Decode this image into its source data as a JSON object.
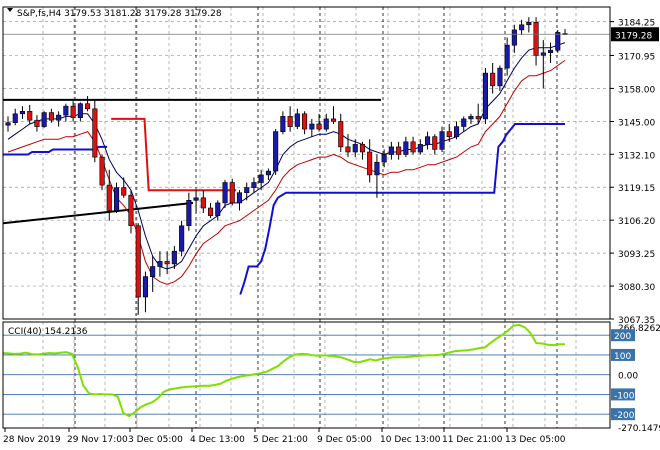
{
  "header": {
    "text": "S&P,fs,H4  3179.53 3181.28 3179.28 3179.28"
  },
  "price_axis": {
    "ticks": [
      "3184.25",
      "3170.95",
      "3158.00",
      "3145.00",
      "3132.10",
      "3119.15",
      "3106.20",
      "3093.25",
      "3080.30",
      "3067.35"
    ],
    "current_price": "3179.28"
  },
  "cci_panel": {
    "label": "CCI(40) 154.2136",
    "axis_top": "266.8262",
    "axis_bottom": "-270.1479",
    "levels": [
      "200",
      "100",
      "0.00",
      "-100",
      "-200"
    ]
  },
  "time_axis": {
    "labels": [
      "28 Nov 2019",
      "29 Nov 17:00",
      "3 Dec 05:00",
      "4 Dec 13:00",
      "5 Dec 21:00",
      "9 Dec 05:00",
      "10 Dec 13:00",
      "11 Dec 21:00",
      "13 Dec 05:00"
    ]
  },
  "colors": {
    "bull": "#1a1aa8",
    "bear": "#dd1111",
    "border": "#000000",
    "grid": "#9a9a9a",
    "cci_line": "#7ee000",
    "level_bg": "#3973ac",
    "current_bg": "#000000"
  },
  "chart_data": {
    "type": "candlestick",
    "x_start": "28 Nov 2019",
    "timeframe": "H4",
    "ylim": [
      3067.35,
      3190
    ],
    "candles": [
      {
        "o": 3143.5,
        "h": 3147.0,
        "l": 3141.0,
        "c": 3144.5
      },
      {
        "o": 3144.5,
        "h": 3150.0,
        "l": 3143.5,
        "c": 3148.0
      },
      {
        "o": 3148.0,
        "h": 3151.0,
        "l": 3146.0,
        "c": 3149.0
      },
      {
        "o": 3149.0,
        "h": 3151.5,
        "l": 3144.0,
        "c": 3145.5
      },
      {
        "o": 3145.5,
        "h": 3147.5,
        "l": 3141.0,
        "c": 3143.0
      },
      {
        "o": 3143.0,
        "h": 3149.0,
        "l": 3142.5,
        "c": 3148.5
      },
      {
        "o": 3148.5,
        "h": 3150.0,
        "l": 3144.5,
        "c": 3145.5
      },
      {
        "o": 3145.5,
        "h": 3149.0,
        "l": 3143.0,
        "c": 3147.5
      },
      {
        "o": 3147.5,
        "h": 3152.0,
        "l": 3145.0,
        "c": 3151.0
      },
      {
        "o": 3151.0,
        "h": 3153.0,
        "l": 3145.0,
        "c": 3146.5
      },
      {
        "o": 3146.5,
        "h": 3152.5,
        "l": 3145.0,
        "c": 3152.0
      },
      {
        "o": 3152.0,
        "h": 3155.0,
        "l": 3149.0,
        "c": 3150.0
      },
      {
        "o": 3150.0,
        "h": 3153.5,
        "l": 3129.0,
        "c": 3131.0
      },
      {
        "o": 3131.0,
        "h": 3132.0,
        "l": 3118.0,
        "c": 3120.0
      },
      {
        "o": 3120.0,
        "h": 3126.0,
        "l": 3106.0,
        "c": 3110.0
      },
      {
        "o": 3110.0,
        "h": 3121.0,
        "l": 3109.0,
        "c": 3119.0
      },
      {
        "o": 3119.0,
        "h": 3123.0,
        "l": 3115.0,
        "c": 3116.0
      },
      {
        "o": 3116.0,
        "h": 3118.0,
        "l": 3101.0,
        "c": 3104.0
      },
      {
        "o": 3104.0,
        "h": 3105.0,
        "l": 3069.0,
        "c": 3076.0
      },
      {
        "o": 3076.0,
        "h": 3086.0,
        "l": 3070.0,
        "c": 3084.0
      },
      {
        "o": 3084.0,
        "h": 3092.0,
        "l": 3078.0,
        "c": 3088.0
      },
      {
        "o": 3088.0,
        "h": 3094.0,
        "l": 3084.0,
        "c": 3090.0
      },
      {
        "o": 3090.0,
        "h": 3094.0,
        "l": 3085.0,
        "c": 3089.0
      },
      {
        "o": 3089.0,
        "h": 3096.0,
        "l": 3087.0,
        "c": 3094.0
      },
      {
        "o": 3094.0,
        "h": 3106.0,
        "l": 3092.0,
        "c": 3104.0
      },
      {
        "o": 3104.0,
        "h": 3117.0,
        "l": 3102.0,
        "c": 3114.0
      },
      {
        "o": 3114.0,
        "h": 3118.0,
        "l": 3109.0,
        "c": 3115.0
      },
      {
        "o": 3115.0,
        "h": 3118.0,
        "l": 3109.0,
        "c": 3111.0
      },
      {
        "o": 3111.0,
        "h": 3113.0,
        "l": 3107.0,
        "c": 3108.0
      },
      {
        "o": 3108.0,
        "h": 3114.0,
        "l": 3106.0,
        "c": 3113.0
      },
      {
        "o": 3113.0,
        "h": 3122.0,
        "l": 3111.0,
        "c": 3121.0
      },
      {
        "o": 3121.0,
        "h": 3122.5,
        "l": 3112.0,
        "c": 3113.0
      },
      {
        "o": 3113.0,
        "h": 3118.0,
        "l": 3110.0,
        "c": 3117.0
      },
      {
        "o": 3117.0,
        "h": 3121.0,
        "l": 3114.0,
        "c": 3119.0
      },
      {
        "o": 3119.0,
        "h": 3123.0,
        "l": 3117.0,
        "c": 3121.0
      },
      {
        "o": 3121.0,
        "h": 3126.0,
        "l": 3118.0,
        "c": 3124.0
      },
      {
        "o": 3124.0,
        "h": 3126.5,
        "l": 3122.0,
        "c": 3125.5
      },
      {
        "o": 3125.5,
        "h": 3142.0,
        "l": 3124.0,
        "c": 3141.0
      },
      {
        "o": 3141.0,
        "h": 3149.0,
        "l": 3140.0,
        "c": 3147.0
      },
      {
        "o": 3147.0,
        "h": 3151.0,
        "l": 3141.0,
        "c": 3143.0
      },
      {
        "o": 3143.0,
        "h": 3150.0,
        "l": 3142.0,
        "c": 3148.0
      },
      {
        "o": 3148.0,
        "h": 3149.0,
        "l": 3140.0,
        "c": 3142.0
      },
      {
        "o": 3142.0,
        "h": 3146.0,
        "l": 3139.0,
        "c": 3144.0
      },
      {
        "o": 3144.0,
        "h": 3148.0,
        "l": 3141.0,
        "c": 3142.0
      },
      {
        "o": 3142.0,
        "h": 3148.0,
        "l": 3141.0,
        "c": 3146.0
      },
      {
        "o": 3146.0,
        "h": 3151.0,
        "l": 3144.0,
        "c": 3145.0
      },
      {
        "o": 3145.0,
        "h": 3148.0,
        "l": 3133.0,
        "c": 3135.0
      },
      {
        "o": 3135.0,
        "h": 3140.0,
        "l": 3131.0,
        "c": 3133.0
      },
      {
        "o": 3133.0,
        "h": 3138.0,
        "l": 3131.0,
        "c": 3136.0
      },
      {
        "o": 3136.0,
        "h": 3137.0,
        "l": 3130.0,
        "c": 3133.0
      },
      {
        "o": 3133.0,
        "h": 3138.0,
        "l": 3121.0,
        "c": 3124.0
      },
      {
        "o": 3124.0,
        "h": 3132.0,
        "l": 3115.0,
        "c": 3129.0
      },
      {
        "o": 3129.0,
        "h": 3134.0,
        "l": 3127.0,
        "c": 3132.0
      },
      {
        "o": 3132.0,
        "h": 3137.0,
        "l": 3130.0,
        "c": 3135.0
      },
      {
        "o": 3135.0,
        "h": 3137.0,
        "l": 3130.0,
        "c": 3132.0
      },
      {
        "o": 3132.0,
        "h": 3139.0,
        "l": 3131.0,
        "c": 3137.0
      },
      {
        "o": 3137.0,
        "h": 3139.0,
        "l": 3132.0,
        "c": 3133.0
      },
      {
        "o": 3133.0,
        "h": 3138.0,
        "l": 3132.0,
        "c": 3136.0
      },
      {
        "o": 3136.0,
        "h": 3141.0,
        "l": 3134.0,
        "c": 3139.0
      },
      {
        "o": 3139.0,
        "h": 3140.0,
        "l": 3132.0,
        "c": 3134.0
      },
      {
        "o": 3134.0,
        "h": 3143.0,
        "l": 3133.0,
        "c": 3141.0
      },
      {
        "o": 3141.0,
        "h": 3144.0,
        "l": 3137.0,
        "c": 3139.0
      },
      {
        "o": 3139.0,
        "h": 3145.0,
        "l": 3138.0,
        "c": 3143.0
      },
      {
        "o": 3143.0,
        "h": 3147.0,
        "l": 3141.0,
        "c": 3146.0
      },
      {
        "o": 3146.0,
        "h": 3148.0,
        "l": 3144.0,
        "c": 3147.0
      },
      {
        "o": 3147.0,
        "h": 3152.0,
        "l": 3144.0,
        "c": 3146.0
      },
      {
        "o": 3146.0,
        "h": 3166.0,
        "l": 3144.0,
        "c": 3164.0
      },
      {
        "o": 3164.0,
        "h": 3168.0,
        "l": 3156.0,
        "c": 3159.0
      },
      {
        "o": 3159.0,
        "h": 3167.0,
        "l": 3157.0,
        "c": 3166.0
      },
      {
        "o": 3166.0,
        "h": 3178.0,
        "l": 3163.0,
        "c": 3175.0
      },
      {
        "o": 3175.0,
        "h": 3183.0,
        "l": 3172.0,
        "c": 3181.0
      },
      {
        "o": 3181.0,
        "h": 3185.0,
        "l": 3179.0,
        "c": 3183.0
      },
      {
        "o": 3183.0,
        "h": 3186.0,
        "l": 3180.0,
        "c": 3184.0
      },
      {
        "o": 3184.0,
        "h": 3186.0,
        "l": 3167.0,
        "c": 3171.0
      },
      {
        "o": 3171.0,
        "h": 3177.0,
        "l": 3158.0,
        "c": 3172.0
      },
      {
        "o": 3172.0,
        "h": 3176.0,
        "l": 3168.0,
        "c": 3173.0
      },
      {
        "o": 3173.0,
        "h": 3181.0,
        "l": 3172.0,
        "c": 3180.0
      },
      {
        "o": 3179.53,
        "h": 3181.28,
        "l": 3179.28,
        "c": 3179.28
      }
    ],
    "mid_line": [
      3138,
      3140,
      3142,
      3144,
      3145,
      3146,
      3146,
      3146,
      3147,
      3147,
      3148,
      3148,
      3144,
      3138,
      3130,
      3125,
      3122,
      3118,
      3110,
      3100,
      3092,
      3088,
      3087,
      3088,
      3090,
      3095,
      3100,
      3104,
      3106,
      3108,
      3112,
      3113,
      3113,
      3115,
      3117,
      3119,
      3121,
      3126,
      3132,
      3135,
      3137,
      3138,
      3139,
      3140,
      3140,
      3141,
      3140,
      3138,
      3137,
      3136,
      3134,
      3133,
      3132,
      3133,
      3133,
      3134,
      3134,
      3135,
      3136,
      3136,
      3137,
      3138,
      3139,
      3141,
      3143,
      3144,
      3150,
      3153,
      3156,
      3161,
      3166,
      3170,
      3173,
      3174,
      3174,
      3174,
      3175,
      3176
    ],
    "lower_line": [
      3133,
      3134,
      3135,
      3136,
      3137,
      3138,
      3138,
      3138,
      3139,
      3139,
      3140,
      3141,
      3137,
      3130,
      3122,
      3115,
      3112,
      3108,
      3100,
      3090,
      3084,
      3082,
      3081,
      3082,
      3084,
      3088,
      3093,
      3097,
      3099,
      3101,
      3104,
      3105,
      3106,
      3108,
      3110,
      3112,
      3114,
      3118,
      3123,
      3126,
      3128,
      3129,
      3130,
      3131,
      3131,
      3132,
      3131,
      3129,
      3128,
      3127,
      3126,
      3125,
      3124,
      3125,
      3125,
      3126,
      3126,
      3127,
      3128,
      3128,
      3129,
      3130,
      3131,
      3133,
      3135,
      3136,
      3141,
      3144,
      3147,
      3152,
      3157,
      3161,
      3163,
      3163,
      3164,
      3165,
      3167,
      3169
    ],
    "envelope_lower": [
      [
        0,
        3132
      ],
      [
        1,
        3132
      ],
      [
        2,
        3132
      ],
      [
        3,
        3132
      ],
      [
        4,
        3132
      ],
      [
        5,
        3132
      ],
      [
        6,
        3132
      ],
      [
        7,
        3133
      ],
      [
        8,
        3133
      ],
      [
        9,
        3133
      ],
      [
        10,
        3133
      ],
      [
        11,
        3133
      ],
      [
        12,
        3134
      ],
      [
        13,
        3134
      ],
      [
        14,
        3134
      ],
      [
        15,
        3134
      ],
      [
        16,
        3134
      ],
      [
        17,
        3134
      ],
      [
        18,
        3134
      ],
      [
        19,
        3134
      ],
      [
        20,
        3134
      ],
      [
        21,
        3134
      ],
      [
        22,
        3134
      ],
      [
        23,
        3135
      ],
      [
        24,
        3135
      ],
      [
        25,
        3135
      ],
      null,
      [
        57,
        3077
      ],
      [
        58,
        3082
      ],
      [
        59,
        3088
      ],
      [
        60,
        3088
      ],
      [
        61,
        3088
      ],
      [
        62,
        3090
      ],
      [
        63,
        3095
      ],
      [
        64,
        3103
      ],
      [
        65,
        3112
      ],
      [
        66,
        3115
      ],
      [
        67,
        3116
      ],
      [
        68,
        3117
      ],
      [
        69,
        3117
      ],
      [
        70,
        3117
      ],
      [
        71,
        3117
      ],
      [
        72,
        3117
      ],
      [
        73,
        3117
      ],
      [
        74,
        3117
      ],
      [
        75,
        3117
      ],
      [
        76,
        3117
      ],
      [
        77,
        3117
      ],
      [
        78,
        3117
      ],
      [
        79,
        3117
      ],
      [
        80,
        3117
      ],
      [
        81,
        3117
      ],
      [
        82,
        3117
      ],
      [
        83,
        3117
      ],
      [
        84,
        3117
      ],
      [
        85,
        3117
      ],
      [
        86,
        3117
      ],
      [
        87,
        3117
      ],
      [
        88,
        3117
      ],
      [
        89,
        3117
      ],
      [
        90,
        3117
      ],
      [
        91,
        3117
      ],
      [
        92,
        3117
      ],
      [
        93,
        3117
      ],
      [
        94,
        3117
      ],
      [
        95,
        3117
      ],
      [
        96,
        3117
      ],
      [
        97,
        3117
      ],
      [
        98,
        3117
      ],
      [
        99,
        3117
      ],
      [
        100,
        3117
      ],
      [
        101,
        3117
      ],
      [
        102,
        3117
      ],
      [
        103,
        3117
      ],
      [
        104,
        3117
      ],
      [
        105,
        3117
      ],
      [
        106,
        3117
      ],
      [
        107,
        3117
      ],
      [
        108,
        3117
      ],
      [
        109,
        3117
      ],
      [
        110,
        3117
      ],
      [
        111,
        3117
      ],
      [
        112,
        3117
      ],
      [
        113,
        3117
      ],
      [
        114,
        3117
      ],
      [
        115,
        3117
      ],
      [
        116,
        3117
      ],
      [
        117,
        3117
      ],
      [
        118,
        3117
      ],
      [
        119,
        3135
      ],
      [
        120,
        3137
      ],
      [
        121,
        3140
      ],
      [
        122,
        3142
      ],
      [
        123,
        3144
      ],
      [
        124,
        3144
      ],
      [
        125,
        3144
      ],
      [
        126,
        3144
      ],
      [
        127,
        3144
      ],
      [
        128,
        3144
      ],
      [
        129,
        3144
      ],
      [
        130,
        3144
      ],
      [
        131,
        3144
      ],
      [
        132,
        3144
      ],
      [
        133,
        3144
      ],
      [
        134,
        3144
      ],
      [
        135,
        3144
      ]
    ],
    "envelope_upper": [
      [
        26,
        3146
      ],
      [
        27,
        3146
      ],
      [
        28,
        3146
      ],
      [
        29,
        3146
      ],
      [
        30,
        3146
      ],
      [
        31,
        3146
      ],
      [
        32,
        3146
      ],
      [
        33,
        3146
      ],
      [
        34,
        3146
      ],
      [
        35,
        3118
      ],
      [
        36,
        3118
      ],
      [
        37,
        3118
      ],
      [
        38,
        3118
      ],
      [
        39,
        3118
      ],
      [
        40,
        3118
      ],
      [
        41,
        3118
      ],
      [
        42,
        3118
      ],
      [
        43,
        3118
      ],
      [
        44,
        3118
      ],
      [
        45,
        3118
      ],
      [
        46,
        3118
      ],
      [
        47,
        3118
      ],
      [
        48,
        3118
      ],
      [
        49,
        3118
      ],
      [
        50,
        3118
      ],
      [
        51,
        3118
      ],
      [
        52,
        3118
      ],
      [
        53,
        3118
      ],
      [
        54,
        3118
      ],
      [
        55,
        3118
      ],
      [
        56,
        3118
      ]
    ],
    "trendlines": [
      {
        "from": [
          0,
          3153.5
        ],
        "to": [
          378,
          3153.5
        ]
      },
      {
        "from": [
          0,
          3105.0
        ],
        "to": [
          190,
          3113.0
        ]
      }
    ],
    "cci_levels": [
      200,
      100,
      0,
      -100,
      -200
    ],
    "cci_ylim": [
      -270.1479,
      266.8262
    ],
    "cci": [
      110,
      108,
      105,
      107,
      112,
      104,
      102,
      106,
      110,
      108,
      111,
      114,
      106,
      40,
      -55,
      -95,
      -100,
      -98,
      -100,
      -100,
      -110,
      -195,
      -210,
      -190,
      -165,
      -150,
      -140,
      -120,
      -88,
      -75,
      -70,
      -65,
      -62,
      -60,
      -58,
      -56,
      -56,
      -52,
      -45,
      -30,
      -20,
      -12,
      -6,
      -2,
      3,
      8,
      15,
      30,
      45,
      70,
      90,
      102,
      105,
      103,
      98,
      96,
      98,
      95,
      92,
      88,
      78,
      66,
      62,
      70,
      78,
      72,
      80,
      84,
      88,
      88,
      88,
      91,
      93,
      96,
      98,
      98,
      100,
      106,
      114,
      120,
      122,
      124,
      128,
      134,
      138,
      160,
      182,
      200,
      222,
      248,
      252,
      240,
      210,
      160,
      158,
      152,
      150,
      154,
      154
    ]
  }
}
